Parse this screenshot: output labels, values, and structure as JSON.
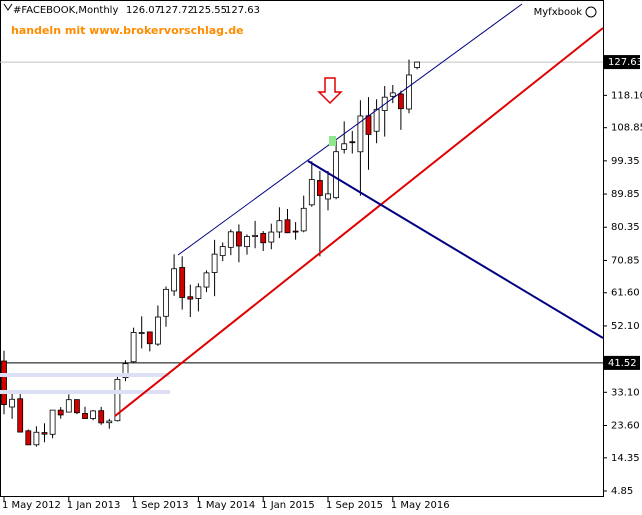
{
  "chart_data": {
    "type": "candlestick",
    "title": "#FACEBOOK,Monthly",
    "annotation": "handeln mit www.brokervorschlag.de",
    "watermark": "Myfxbook",
    "categories": [
      "1 May 2012",
      null,
      null,
      null,
      null,
      null,
      null,
      null,
      "1 Jan 2013",
      null,
      null,
      null,
      null,
      null,
      null,
      null,
      "1 Sep 2013",
      null,
      null,
      null,
      null,
      null,
      null,
      null,
      "1 May 2014",
      null,
      null,
      null,
      null,
      null,
      null,
      null,
      "1 Jan 2015",
      null,
      null,
      null,
      null,
      null,
      null,
      null,
      "1 Sep 2015",
      null,
      null,
      null,
      null,
      null,
      null,
      null,
      "1 May 2016",
      null,
      null,
      null
    ],
    "open": [
      42.05,
      28.89,
      31.25,
      22.08,
      18.08,
      21.57,
      21.08,
      27.99,
      27.44,
      31.01,
      27.05,
      25.63,
      27.85,
      24.4,
      24.97,
      37.3,
      41.85,
      50,
      50.38,
      46.9,
      54.86,
      62.12,
      68.83,
      60.46,
      59.96,
      63.23,
      67.4,
      72.22,
      74.6,
      79.02,
      74.8,
      77.67,
      78.58,
      76.11,
      79,
      82.5,
      79.25,
      79.31,
      86.77,
      93.73,
      88.44,
      88.82,
      102.63,
      104.83,
      101.95,
      112.27,
      107.83,
      113.75,
      117.83,
      118.5,
      114.2,
      126.07
    ],
    "high": [
      45,
      33.45,
      32.88,
      22.45,
      23.37,
      24.25,
      28,
      28.88,
      32.51,
      31.02,
      28.98,
      28,
      28.93,
      25.5,
      38.31,
      42.26,
      51.6,
      54.83,
      50.5,
      57.96,
      63.37,
      72.59,
      72.03,
      63.91,
      64.3,
      68,
      76.74,
      75.99,
      79.73,
      81.16,
      78.26,
      82.17,
      79.25,
      81.37,
      86.07,
      85.59,
      81.82,
      89.4,
      99.24,
      96.49,
      96.48,
      105.12,
      110.65,
      107.92,
      116.7,
      117.59,
      116.99,
      120.79,
      121.08,
      119.44,
      128.33,
      127.72
    ],
    "low": [
      26.83,
      25.52,
      21.61,
      18.03,
      17.55,
      18.8,
      19.95,
      25.56,
      27.42,
      26.85,
      25.52,
      25.11,
      23.82,
      22.67,
      24.75,
      36.27,
      41.52,
      45.66,
      44.82,
      46.37,
      51.85,
      60.71,
      56.79,
      54.66,
      56.25,
      61.79,
      60.62,
      70.68,
      72.36,
      70.32,
      72.51,
      74.34,
      73.54,
      74.05,
      77.26,
      78.66,
      76.78,
      78.91,
      86.22,
      72,
      85.19,
      88.36,
      101.46,
      101.46,
      89.37,
      96.82,
      104.4,
      106.31,
      115.88,
      108.23,
      112.97,
      125.55
    ],
    "close": [
      29.6,
      31.1,
      21.71,
      18.06,
      21.66,
      21.11,
      28,
      26.62,
      30.98,
      27.25,
      25.58,
      27.77,
      24.35,
      24.88,
      36.8,
      41.29,
      50.23,
      50.21,
      47.01,
      54.65,
      62.57,
      68.46,
      60.24,
      59.78,
      63.3,
      67.29,
      72.65,
      74.82,
      79.04,
      74.99,
      77.7,
      78.02,
      75.91,
      78.97,
      82.22,
      78.77,
      79.19,
      85.77,
      94.01,
      89.43,
      89.9,
      101.97,
      104.24,
      104.66,
      112.21,
      106.92,
      114.1,
      117.58,
      118.81,
      114.28,
      123.94,
      127.63
    ],
    "up_color": "#ffffff",
    "down_color": "#d40000",
    "ylim": [
      3.13,
      145.4
    ],
    "yticks": [
      4.85,
      14.35,
      {
        "value": 23.6,
        "label": "23.60"
      },
      {
        "value": 33.1,
        "label": "33.10"
      },
      {
        "value": 52.1,
        "label": "52.10"
      },
      {
        "value": 61.6,
        "label": "61.60"
      },
      70.85,
      80.35,
      89.85,
      99.35,
      108.85,
      {
        "value": 118.1,
        "label": "118.10"
      }
    ],
    "level_line": 41.52
  }
}
